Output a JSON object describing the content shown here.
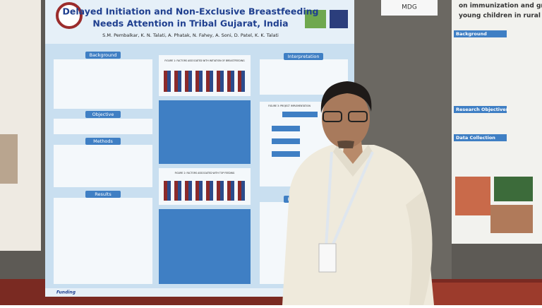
{
  "poster": {
    "title_line1": "Delayed Initiation and Non-Exclusive Breastfeeding",
    "title_line2": "Needs Attention in Tribal Gujarat, India",
    "authors": "S.M. Pembalkar, K. N. Talati, A. Phatak, N. Fahey, A. Soni, D. Patel, K. K. Talati",
    "left_sections": [
      "Background",
      "Objective",
      "Methods",
      "Results"
    ],
    "right_sections": [
      "Interpretation",
      "Interpretation"
    ],
    "figure1": "FIGURE 1: FACTORS ASSOCIATED WITH INITIATION OF BREASTFEEDING",
    "figure2": "FIGURE 2: FACTORS ASSOCIATED WITH TOP FEEDING",
    "figure3": "FIGURE 3: PROJECT IMPLEMENTATION",
    "funding": "Funding"
  },
  "side_poster": {
    "title_lines": [
      "on immunization and grow",
      "young children in rural Lao"
    ],
    "sections": [
      "Background",
      "Research Objectives",
      "Data Collection"
    ]
  },
  "sign": "MDG"
}
